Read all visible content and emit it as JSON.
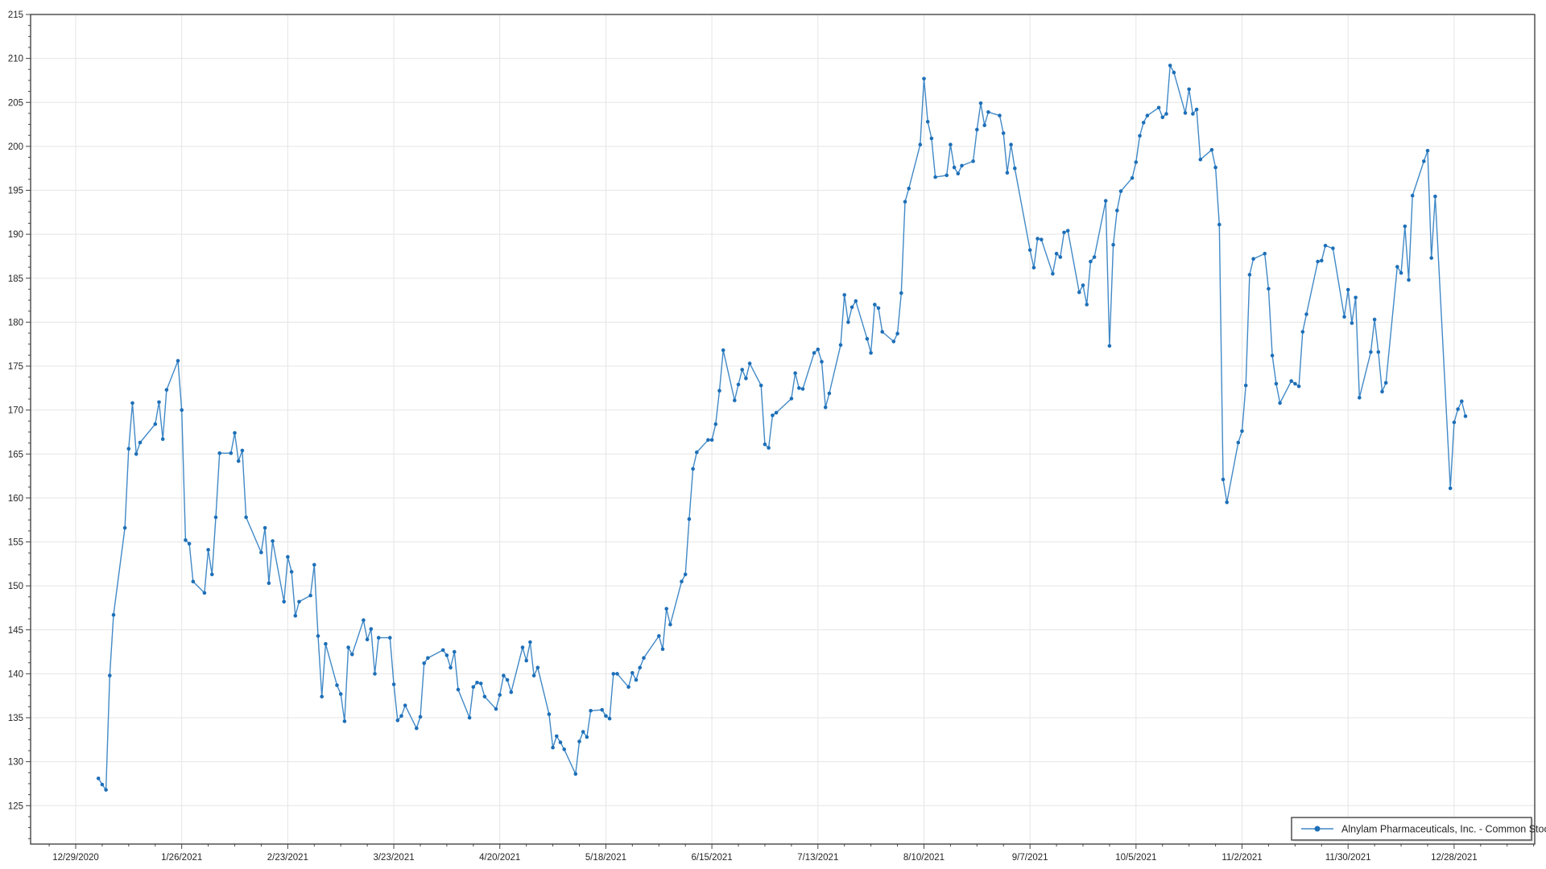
{
  "window": {
    "background": "#ffffff"
  },
  "chart_data": {
    "type": "line",
    "title": "",
    "grid": true,
    "legend": {
      "position": "bottom-right-inside",
      "label": "Alnylam Pharmaceuticals, Inc. - Common Stock"
    },
    "colors": {
      "line": "#4189c7",
      "marker": "#1d6fb8",
      "gridline": "#e5e5e5",
      "axis": "#444444",
      "label": "#262626",
      "legend_border": "#5a5a5a",
      "background": "#ffffff"
    },
    "y_axis": {
      "label_min": 125,
      "label_max": 215,
      "label_step": 5,
      "minor_step": 1.25,
      "axis_min": 120.6,
      "axis_max": 215
    },
    "x_axis": {
      "tick_labels": [
        "12/29/2020",
        "1/26/2021",
        "2/23/2021",
        "3/23/2021",
        "4/20/2021",
        "5/18/2021",
        "6/15/2021",
        "7/13/2021",
        "8/10/2021",
        "9/7/2021",
        "10/5/2021",
        "11/2/2021",
        "11/30/2021",
        "12/28/2021"
      ],
      "tick_interval_days": 28,
      "minor_tick_days": 7
    },
    "series": [
      {
        "name": "Alnylam Pharmaceuticals, Inc. - Common Stock",
        "points": [
          [
            "1/4/2021",
            128.1
          ],
          [
            "1/5/2021",
            127.4
          ],
          [
            "1/6/2021",
            126.8
          ],
          [
            "1/7/2021",
            139.8
          ],
          [
            "1/8/2021",
            146.7
          ],
          [
            "1/11/2021",
            156.6
          ],
          [
            "1/12/2021",
            165.6
          ],
          [
            "1/13/2021",
            170.8
          ],
          [
            "1/14/2021",
            165.0
          ],
          [
            "1/15/2021",
            166.3
          ],
          [
            "1/19/2021",
            168.4
          ],
          [
            "1/20/2021",
            170.9
          ],
          [
            "1/21/2021",
            166.7
          ],
          [
            "1/22/2021",
            172.3
          ],
          [
            "1/25/2021",
            175.6
          ],
          [
            "1/26/2021",
            170.0
          ],
          [
            "1/27/2021",
            155.2
          ],
          [
            "1/28/2021",
            154.8
          ],
          [
            "1/29/2021",
            150.5
          ],
          [
            "2/1/2021",
            149.2
          ],
          [
            "2/2/2021",
            154.1
          ],
          [
            "2/3/2021",
            151.3
          ],
          [
            "2/4/2021",
            157.8
          ],
          [
            "2/5/2021",
            165.1
          ],
          [
            "2/8/2021",
            165.1
          ],
          [
            "2/9/2021",
            167.4
          ],
          [
            "2/10/2021",
            164.2
          ],
          [
            "2/11/2021",
            165.4
          ],
          [
            "2/12/2021",
            157.8
          ],
          [
            "2/16/2021",
            153.8
          ],
          [
            "2/17/2021",
            156.6
          ],
          [
            "2/18/2021",
            150.3
          ],
          [
            "2/19/2021",
            155.1
          ],
          [
            "2/22/2021",
            148.2
          ],
          [
            "2/23/2021",
            153.3
          ],
          [
            "2/24/2021",
            151.6
          ],
          [
            "2/25/2021",
            146.6
          ],
          [
            "2/26/2021",
            148.2
          ],
          [
            "3/1/2021",
            148.9
          ],
          [
            "3/2/2021",
            152.4
          ],
          [
            "3/3/2021",
            144.3
          ],
          [
            "3/4/2021",
            137.4
          ],
          [
            "3/5/2021",
            143.4
          ],
          [
            "3/8/2021",
            138.7
          ],
          [
            "3/9/2021",
            137.7
          ],
          [
            "3/10/2021",
            134.6
          ],
          [
            "3/11/2021",
            143.0
          ],
          [
            "3/12/2021",
            142.2
          ],
          [
            "3/15/2021",
            146.1
          ],
          [
            "3/16/2021",
            143.9
          ],
          [
            "3/17/2021",
            145.1
          ],
          [
            "3/18/2021",
            140.0
          ],
          [
            "3/19/2021",
            144.1
          ],
          [
            "3/22/2021",
            144.1
          ],
          [
            "3/23/2021",
            138.8
          ],
          [
            "3/24/2021",
            134.7
          ],
          [
            "3/25/2021",
            135.2
          ],
          [
            "3/26/2021",
            136.4
          ],
          [
            "3/29/2021",
            133.8
          ],
          [
            "3/30/2021",
            135.1
          ],
          [
            "3/31/2021",
            141.2
          ],
          [
            "4/1/2021",
            141.8
          ],
          [
            "4/5/2021",
            142.7
          ],
          [
            "4/6/2021",
            142.1
          ],
          [
            "4/7/2021",
            140.7
          ],
          [
            "4/8/2021",
            142.5
          ],
          [
            "4/9/2021",
            138.2
          ],
          [
            "4/12/2021",
            135.0
          ],
          [
            "4/13/2021",
            138.5
          ],
          [
            "4/14/2021",
            139.0
          ],
          [
            "4/15/2021",
            138.9
          ],
          [
            "4/16/2021",
            137.4
          ],
          [
            "4/19/2021",
            136.0
          ],
          [
            "4/20/2021",
            137.6
          ],
          [
            "4/21/2021",
            139.8
          ],
          [
            "4/22/2021",
            139.3
          ],
          [
            "4/23/2021",
            137.9
          ],
          [
            "4/26/2021",
            143.0
          ],
          [
            "4/27/2021",
            141.5
          ],
          [
            "4/28/2021",
            143.6
          ],
          [
            "4/29/2021",
            139.8
          ],
          [
            "4/30/2021",
            140.7
          ],
          [
            "5/3/2021",
            135.4
          ],
          [
            "5/4/2021",
            131.6
          ],
          [
            "5/5/2021",
            132.9
          ],
          [
            "5/6/2021",
            132.2
          ],
          [
            "5/7/2021",
            131.4
          ],
          [
            "5/10/2021",
            128.6
          ],
          [
            "5/11/2021",
            132.3
          ],
          [
            "5/12/2021",
            133.4
          ],
          [
            "5/13/2021",
            132.8
          ],
          [
            "5/14/2021",
            135.8
          ],
          [
            "5/17/2021",
            135.9
          ],
          [
            "5/18/2021",
            135.2
          ],
          [
            "5/19/2021",
            134.9
          ],
          [
            "5/20/2021",
            140.0
          ],
          [
            "5/21/2021",
            140.0
          ],
          [
            "5/24/2021",
            138.5
          ],
          [
            "5/25/2021",
            140.1
          ],
          [
            "5/26/2021",
            139.3
          ],
          [
            "5/27/2021",
            140.7
          ],
          [
            "5/28/2021",
            141.8
          ],
          [
            "6/1/2021",
            144.3
          ],
          [
            "6/2/2021",
            142.8
          ],
          [
            "6/3/2021",
            147.4
          ],
          [
            "6/4/2021",
            145.6
          ],
          [
            "6/7/2021",
            150.5
          ],
          [
            "6/8/2021",
            151.3
          ],
          [
            "6/9/2021",
            157.6
          ],
          [
            "6/10/2021",
            163.3
          ],
          [
            "6/11/2021",
            165.2
          ],
          [
            "6/14/2021",
            166.6
          ],
          [
            "6/15/2021",
            166.6
          ],
          [
            "6/16/2021",
            168.4
          ],
          [
            "6/17/2021",
            172.2
          ],
          [
            "6/18/2021",
            176.8
          ],
          [
            "6/21/2021",
            171.1
          ],
          [
            "6/22/2021",
            172.9
          ],
          [
            "6/23/2021",
            174.6
          ],
          [
            "6/24/2021",
            173.6
          ],
          [
            "6/25/2021",
            175.3
          ],
          [
            "6/28/2021",
            172.8
          ],
          [
            "6/29/2021",
            166.1
          ],
          [
            "6/30/2021",
            165.7
          ],
          [
            "7/1/2021",
            169.4
          ],
          [
            "7/2/2021",
            169.7
          ],
          [
            "7/6/2021",
            171.3
          ],
          [
            "7/7/2021",
            174.2
          ],
          [
            "7/8/2021",
            172.5
          ],
          [
            "7/9/2021",
            172.4
          ],
          [
            "7/12/2021",
            176.5
          ],
          [
            "7/13/2021",
            176.9
          ],
          [
            "7/14/2021",
            175.5
          ],
          [
            "7/15/2021",
            170.3
          ],
          [
            "7/16/2021",
            171.9
          ],
          [
            "7/19/2021",
            177.4
          ],
          [
            "7/20/2021",
            183.1
          ],
          [
            "7/21/2021",
            180.0
          ],
          [
            "7/22/2021",
            181.7
          ],
          [
            "7/23/2021",
            182.4
          ],
          [
            "7/26/2021",
            178.1
          ],
          [
            "7/27/2021",
            176.5
          ],
          [
            "7/28/2021",
            182.0
          ],
          [
            "7/29/2021",
            181.6
          ],
          [
            "7/30/2021",
            178.9
          ],
          [
            "8/2/2021",
            177.8
          ],
          [
            "8/3/2021",
            178.7
          ],
          [
            "8/4/2021",
            183.3
          ],
          [
            "8/5/2021",
            193.7
          ],
          [
            "8/6/2021",
            195.2
          ],
          [
            "8/9/2021",
            200.2
          ],
          [
            "8/10/2021",
            207.7
          ],
          [
            "8/11/2021",
            202.8
          ],
          [
            "8/12/2021",
            200.9
          ],
          [
            "8/13/2021",
            196.5
          ],
          [
            "8/16/2021",
            196.7
          ],
          [
            "8/17/2021",
            200.2
          ],
          [
            "8/18/2021",
            197.6
          ],
          [
            "8/19/2021",
            196.9
          ],
          [
            "8/20/2021",
            197.8
          ],
          [
            "8/23/2021",
            198.3
          ],
          [
            "8/24/2021",
            201.9
          ],
          [
            "8/25/2021",
            204.9
          ],
          [
            "8/26/2021",
            202.4
          ],
          [
            "8/27/2021",
            203.9
          ],
          [
            "8/30/2021",
            203.5
          ],
          [
            "8/31/2021",
            201.5
          ],
          [
            "9/1/2021",
            197.0
          ],
          [
            "9/2/2021",
            200.2
          ],
          [
            "9/3/2021",
            197.5
          ],
          [
            "9/7/2021",
            188.2
          ],
          [
            "9/8/2021",
            186.2
          ],
          [
            "9/9/2021",
            189.5
          ],
          [
            "9/10/2021",
            189.4
          ],
          [
            "9/13/2021",
            185.5
          ],
          [
            "9/14/2021",
            187.8
          ],
          [
            "9/15/2021",
            187.4
          ],
          [
            "9/16/2021",
            190.2
          ],
          [
            "9/17/2021",
            190.4
          ],
          [
            "9/20/2021",
            183.4
          ],
          [
            "9/21/2021",
            184.2
          ],
          [
            "9/22/2021",
            182.0
          ],
          [
            "9/23/2021",
            186.9
          ],
          [
            "9/24/2021",
            187.4
          ],
          [
            "9/27/2021",
            193.8
          ],
          [
            "9/28/2021",
            177.3
          ],
          [
            "9/29/2021",
            188.8
          ],
          [
            "9/30/2021",
            192.7
          ],
          [
            "10/1/2021",
            194.9
          ],
          [
            "10/4/2021",
            196.4
          ],
          [
            "10/5/2021",
            198.2
          ],
          [
            "10/6/2021",
            201.2
          ],
          [
            "10/7/2021",
            202.7
          ],
          [
            "10/8/2021",
            203.5
          ],
          [
            "10/11/2021",
            204.4
          ],
          [
            "10/12/2021",
            203.3
          ],
          [
            "10/13/2021",
            203.7
          ],
          [
            "10/14/2021",
            209.2
          ],
          [
            "10/15/2021",
            208.4
          ],
          [
            "10/18/2021",
            203.8
          ],
          [
            "10/19/2021",
            206.5
          ],
          [
            "10/20/2021",
            203.7
          ],
          [
            "10/21/2021",
            204.2
          ],
          [
            "10/22/2021",
            198.5
          ],
          [
            "10/25/2021",
            199.6
          ],
          [
            "10/26/2021",
            197.6
          ],
          [
            "10/27/2021",
            191.1
          ],
          [
            "10/28/2021",
            162.1
          ],
          [
            "10/29/2021",
            159.5
          ],
          [
            "11/1/2021",
            166.3
          ],
          [
            "11/2/2021",
            167.6
          ],
          [
            "11/3/2021",
            172.8
          ],
          [
            "11/4/2021",
            185.4
          ],
          [
            "11/5/2021",
            187.2
          ],
          [
            "11/8/2021",
            187.8
          ],
          [
            "11/9/2021",
            183.8
          ],
          [
            "11/10/2021",
            176.2
          ],
          [
            "11/11/2021",
            173.0
          ],
          [
            "11/12/2021",
            170.8
          ],
          [
            "11/15/2021",
            173.3
          ],
          [
            "11/16/2021",
            173.0
          ],
          [
            "11/17/2021",
            172.7
          ],
          [
            "11/18/2021",
            178.9
          ],
          [
            "11/19/2021",
            180.9
          ],
          [
            "11/22/2021",
            186.9
          ],
          [
            "11/23/2021",
            187.0
          ],
          [
            "11/24/2021",
            188.7
          ],
          [
            "11/26/2021",
            188.4
          ],
          [
            "11/29/2021",
            180.6
          ],
          [
            "11/30/2021",
            183.7
          ],
          [
            "12/1/2021",
            179.9
          ],
          [
            "12/2/2021",
            182.8
          ],
          [
            "12/3/2021",
            171.4
          ],
          [
            "12/6/2021",
            176.6
          ],
          [
            "12/7/2021",
            180.3
          ],
          [
            "12/8/2021",
            176.6
          ],
          [
            "12/9/2021",
            172.1
          ],
          [
            "12/10/2021",
            173.1
          ],
          [
            "12/13/2021",
            186.3
          ],
          [
            "12/14/2021",
            185.6
          ],
          [
            "12/15/2021",
            190.9
          ],
          [
            "12/16/2021",
            184.8
          ],
          [
            "12/17/2021",
            194.4
          ],
          [
            "12/20/2021",
            198.3
          ],
          [
            "12/21/2021",
            199.5
          ],
          [
            "12/22/2021",
            187.3
          ],
          [
            "12/23/2021",
            194.3
          ],
          [
            "12/27/2021",
            161.1
          ],
          [
            "12/28/2021",
            168.6
          ],
          [
            "12/29/2021",
            170.1
          ],
          [
            "12/30/2021",
            171.0
          ],
          [
            "12/31/2021",
            169.3
          ]
        ]
      }
    ]
  }
}
